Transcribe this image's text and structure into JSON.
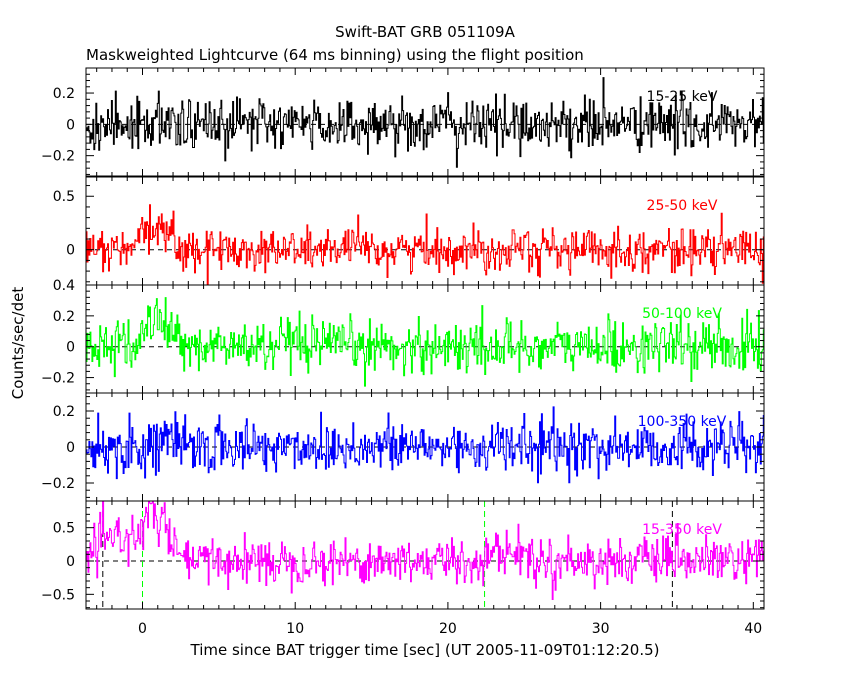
{
  "chart_data": {
    "type": "line",
    "title": "Swift-BAT GRB 051109A",
    "subtitle": "Maskweighted Lightcurve (64 ms binning) using the flight position",
    "xlabel": "Time since BAT trigger time [sec] (UT 2005-11-09T01:12:20.5)",
    "ylabel": "Counts/sec/det",
    "xlim": [
      -3.7,
      40.7
    ],
    "x_ticks": [
      0,
      10,
      20,
      30,
      40
    ],
    "bin_seconds": 0.064,
    "grid": false,
    "panels": [
      {
        "name": "15-25 keV",
        "color": "#000000",
        "ylim": [
          -0.33,
          0.36
        ],
        "y_ticks": [
          -0.2,
          0,
          0.2
        ],
        "y_tick_labels": [
          "−0.2",
          "0",
          "0.2"
        ],
        "noise_sigma": 0.085,
        "signal": []
      },
      {
        "name": "25-50 keV",
        "color": "#ff0000",
        "ylim": [
          -0.33,
          0.68
        ],
        "y_ticks": [
          0,
          0.5
        ],
        "y_tick_labels": [
          "0",
          "0.5"
        ],
        "noise_sigma": 0.1,
        "signal": [
          [
            -0.5,
            2.5,
            0.2,
            1.0
          ],
          [
            24.2,
            25.2,
            0.12,
            0.4
          ]
        ]
      },
      {
        "name": "50-100 keV",
        "color": "#00ff00",
        "ylim": [
          -0.3,
          0.4
        ],
        "y_ticks": [
          -0.2,
          0,
          0.2,
          0.4
        ],
        "y_tick_labels": [
          "−0.2",
          "0",
          "0.2",
          "0.4"
        ],
        "noise_sigma": 0.085,
        "signal": [
          [
            -0.5,
            2.5,
            0.17,
            1.0
          ]
        ]
      },
      {
        "name": "100-350 keV",
        "color": "#0000ff",
        "ylim": [
          -0.3,
          0.3
        ],
        "y_ticks": [
          -0.2,
          0,
          0.2
        ],
        "y_tick_labels": [
          "−0.2",
          "0",
          "0.2"
        ],
        "noise_sigma": 0.075,
        "signal": [
          [
            0.5,
            2.0,
            0.06,
            1.0
          ]
        ]
      },
      {
        "name": "15-350 keV",
        "color": "#ff00ff",
        "ylim": [
          -0.72,
          0.9
        ],
        "y_ticks": [
          -0.5,
          0,
          0.5
        ],
        "y_tick_labels": [
          "−0.5",
          "0",
          "0.5"
        ],
        "noise_sigma": 0.17,
        "signal": [
          [
            -3.5,
            2.5,
            0.4,
            0.6
          ],
          [
            -0.3,
            2.0,
            0.35,
            1.2
          ],
          [
            22.3,
            25.5,
            0.15,
            0.7
          ]
        ],
        "vlines": [
          {
            "x": -2.6,
            "color": "#000000",
            "dash": true
          },
          {
            "x": 0.0,
            "color": "#00ff00",
            "dash": true
          },
          {
            "x": 22.4,
            "color": "#00ff00",
            "dash": true
          },
          {
            "x": 34.7,
            "color": "#000000",
            "dash": true
          }
        ]
      }
    ]
  }
}
